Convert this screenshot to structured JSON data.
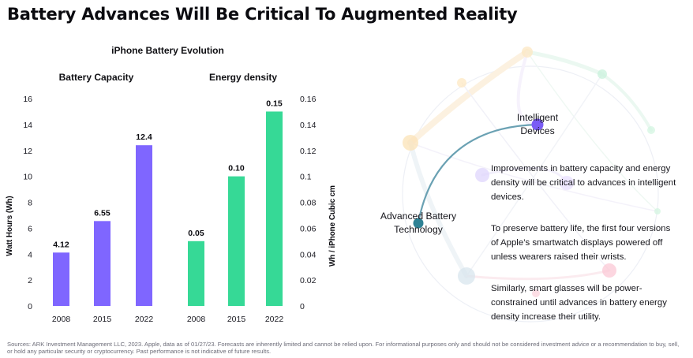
{
  "title": "Battery Advances Will Be Critical To Augmented Reality",
  "subtitle": "iPhone Battery Evolution",
  "chart_data": [
    {
      "type": "bar",
      "title": "Battery Capacity",
      "categories": [
        "2008",
        "2015",
        "2022"
      ],
      "values": [
        4.12,
        6.55,
        12.4
      ],
      "value_labels": [
        "4.12",
        "6.55",
        "12.4"
      ],
      "ylabel": "Watt Hours (Wh)",
      "ylim": [
        0,
        16
      ],
      "yticks": [
        "0",
        "2",
        "4",
        "6",
        "8",
        "10",
        "12",
        "14",
        "16"
      ],
      "axis_side": "left",
      "color": "#7f66ff"
    },
    {
      "type": "bar",
      "title": "Energy density",
      "categories": [
        "2008",
        "2015",
        "2022"
      ],
      "values": [
        0.05,
        0.1,
        0.15
      ],
      "value_labels": [
        "0.05",
        "0.10",
        "0.15"
      ],
      "ylabel": "Wh / iPhone Cubic cm",
      "ylim": [
        0,
        0.16
      ],
      "yticks": [
        "0",
        "0.02",
        "0.04",
        "0.06",
        "0.08",
        "0.1",
        "0.12",
        "0.14",
        "0.16"
      ],
      "axis_side": "right",
      "color": "#36d996"
    }
  ],
  "network": {
    "node_intelligent_lines": [
      "Intelligent",
      "Devices"
    ],
    "node_battery_lines": [
      "Advanced Battery",
      "Technology"
    ],
    "paragraphs": [
      "Improvements in battery capacity and energy density will be critical to advances in intelligent devices.",
      "To preserve battery life, the first four versions of Apple’s smartwatch displays powered off unless wearers raised their wrists.",
      "Similarly, smart glasses will be power-constrained until advances in battery energy density increase their utility."
    ],
    "colors": {
      "link": "#6aa1b3",
      "intelligent_node": "#7a5cf5",
      "battery_node": "#2f8295"
    }
  },
  "source": "Sources: ARK Investment Management LLC, 2023. Apple, data as of 01/27/23. Forecasts are inherently limited and cannot be relied upon. For informational purposes only and should not be considered investment advice or a recommendation to buy, sell, or hold any particular security or cryptocurrency. Past performance is not indicative of future results."
}
